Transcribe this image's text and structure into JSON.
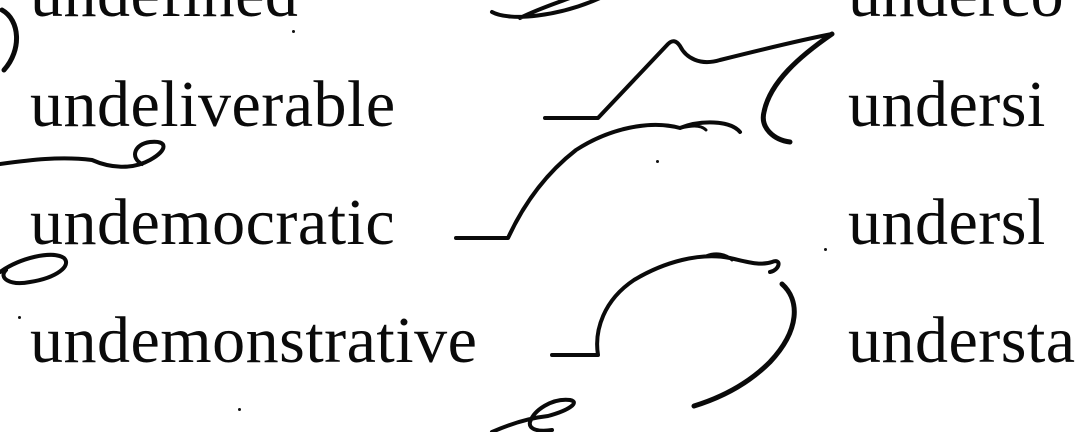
{
  "left_column": {
    "top_partial": "undefined",
    "entries": [
      "undeliverable",
      "undemocratic",
      "undemonstrative"
    ]
  },
  "right_column": {
    "top_partial": "underco",
    "entries": [
      "undersi",
      "undersl",
      "understa"
    ]
  },
  "ink_color": "#0a0a0a",
  "paper_color": "#ffffff"
}
